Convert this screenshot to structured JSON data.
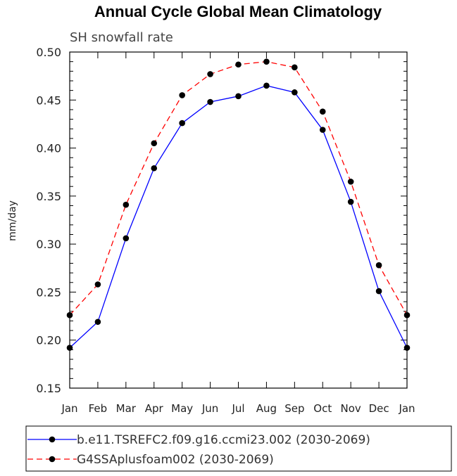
{
  "chart_data": {
    "type": "line",
    "title": "Annual Cycle Global Mean Climatology",
    "subtitle": "SH snowfall rate",
    "ylabel": "mm/day",
    "xlabel": "",
    "categories": [
      "Jan",
      "Feb",
      "Mar",
      "Apr",
      "May",
      "Jun",
      "Jul",
      "Aug",
      "Sep",
      "Oct",
      "Nov",
      "Dec",
      "Jan"
    ],
    "ylim": [
      0.15,
      0.5
    ],
    "yticks": [
      0.15,
      0.2,
      0.25,
      0.3,
      0.35,
      0.4,
      0.45,
      0.5
    ],
    "ytick_labels": [
      "0.15",
      "0.20",
      "0.25",
      "0.30",
      "0.35",
      "0.40",
      "0.45",
      "0.50"
    ],
    "grid": false,
    "legend_position": "bottom",
    "series": [
      {
        "name": "b.e11.TSREFC2.f09.g16.ccmi23.002 (2030-2069)",
        "color": "#0000ff",
        "line_style": "solid",
        "marker": "circle",
        "values": [
          0.192,
          0.219,
          0.306,
          0.379,
          0.426,
          0.448,
          0.454,
          0.465,
          0.458,
          0.419,
          0.344,
          0.251,
          0.192
        ]
      },
      {
        "name": "G4SSAplusfoam002 (2030-2069)",
        "color": "#ff0000",
        "line_style": "dashed",
        "marker": "circle",
        "values": [
          0.226,
          0.258,
          0.341,
          0.405,
          0.455,
          0.477,
          0.487,
          0.49,
          0.484,
          0.438,
          0.365,
          0.278,
          0.226
        ]
      }
    ]
  }
}
